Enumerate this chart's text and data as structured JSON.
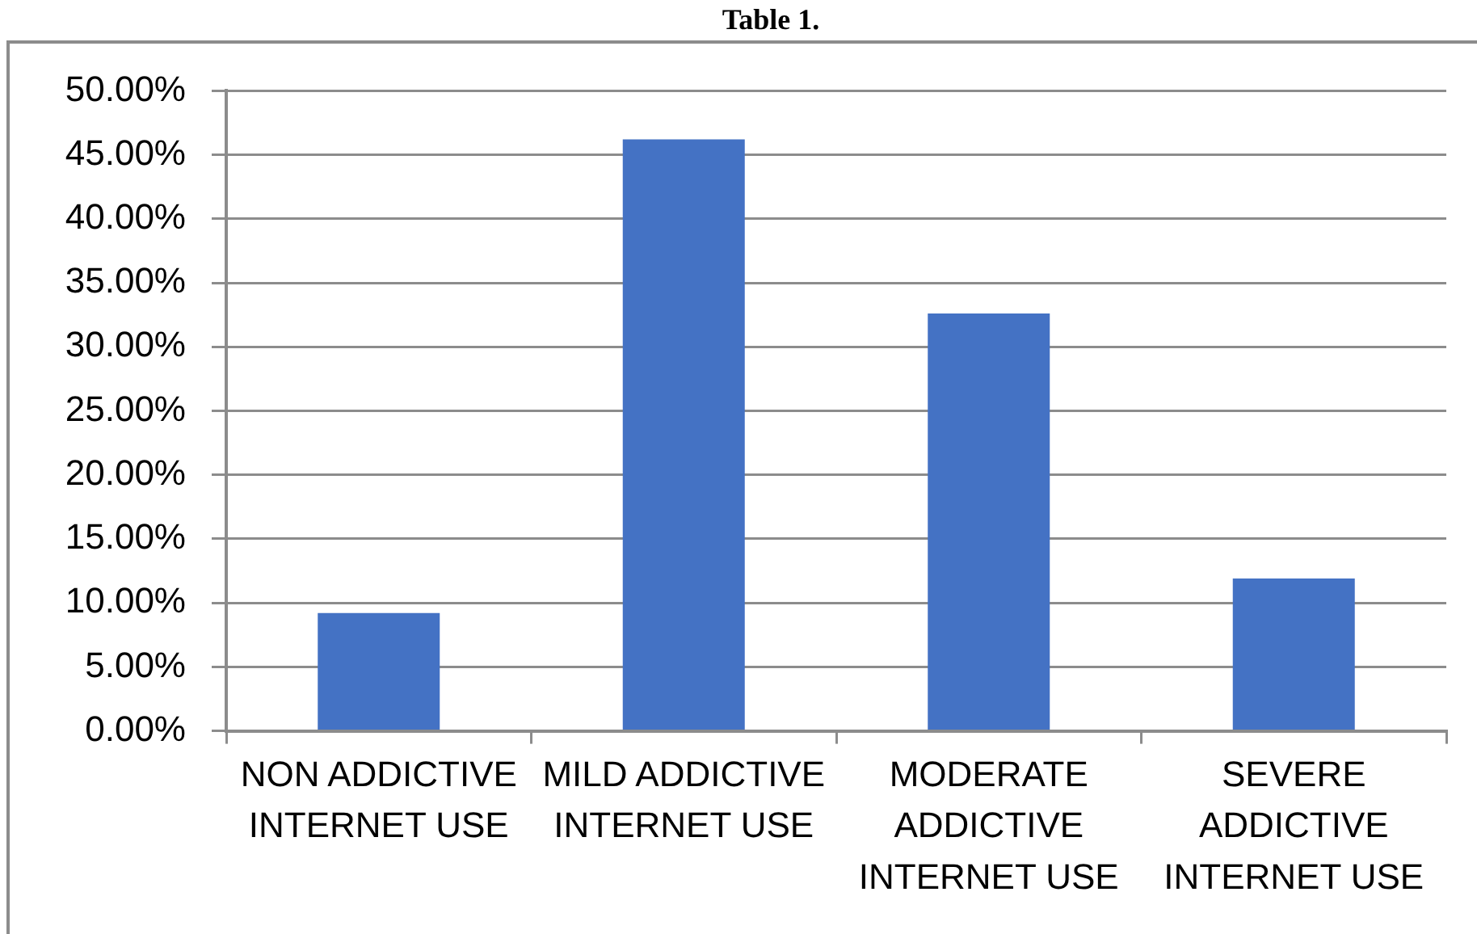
{
  "chart_data": {
    "type": "bar",
    "title": "Table 1.",
    "categories": [
      "NON ADDICTIVE INTERNET USE",
      "MILD ADDICTIVE INTERNET USE",
      "MODERATE ADDICTIVE INTERNET USE",
      "SEVERE ADDICTIVE INTERNET USE"
    ],
    "values": [
      9.2,
      46.2,
      32.6,
      11.9
    ],
    "color": "#4472c4",
    "ylim": [
      0,
      50
    ],
    "yticks": [
      {
        "value": 0,
        "label": "0.00%"
      },
      {
        "value": 5,
        "label": "5.00%"
      },
      {
        "value": 10,
        "label": "10.00%"
      },
      {
        "value": 15,
        "label": "15.00%"
      },
      {
        "value": 20,
        "label": "20.00%"
      },
      {
        "value": 25,
        "label": "25.00%"
      },
      {
        "value": 30,
        "label": "30.00%"
      },
      {
        "value": 35,
        "label": "35.00%"
      },
      {
        "value": 40,
        "label": "40.00%"
      },
      {
        "value": 45,
        "label": "45.00%"
      },
      {
        "value": 50,
        "label": "50.00%"
      }
    ],
    "grid": "y"
  }
}
